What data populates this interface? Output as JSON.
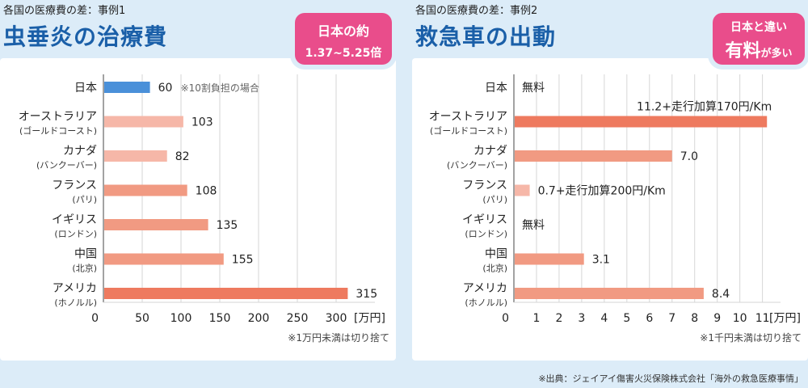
{
  "source": "※出典：ジェイアイ傷害火災保険株式会社「海外の救急医療事情」",
  "colors": {
    "japan": "#4a90d9",
    "bar_light": "#f6b7a8",
    "bar_mid": "#f19a82",
    "bar_dark": "#ee7a5f",
    "badge": "#e94d8b",
    "title": "#1a5fa8"
  },
  "chart_data": [
    {
      "type": "bar",
      "orientation": "horizontal",
      "case_label": "各国の医療費の差：事例1",
      "title": "虫垂炎の治療費",
      "badge": {
        "line1": "日本の約",
        "line2": "1.37~5.25倍"
      },
      "categories": [
        {
          "name": "日本",
          "sub": ""
        },
        {
          "name": "オーストラリア",
          "sub": "(ゴールドコースト)"
        },
        {
          "name": "カナダ",
          "sub": "(バンクーバー)"
        },
        {
          "name": "フランス",
          "sub": "(パリ)"
        },
        {
          "name": "イギリス",
          "sub": "(ロンドン)"
        },
        {
          "name": "中国",
          "sub": "(北京)"
        },
        {
          "name": "アメリカ",
          "sub": "(ホノルル)"
        }
      ],
      "values": [
        60,
        103,
        82,
        108,
        135,
        155,
        315
      ],
      "value_labels": [
        "60",
        "103",
        "82",
        "108",
        "135",
        "155",
        "315"
      ],
      "annotation": "※10割負担の場合",
      "xlim": [
        0,
        350
      ],
      "xticks": [
        "50",
        "100",
        "150",
        "200",
        "250",
        "300"
      ],
      "xticks_values": [
        50,
        100,
        150,
        200,
        250,
        300
      ],
      "origin_label": "0",
      "unit": "[万円]",
      "footnote": "※1万円未満は切り捨て",
      "grid": true
    },
    {
      "type": "bar",
      "orientation": "horizontal",
      "case_label": "各国の医療費の差：事例2",
      "title": "救急車の出動",
      "badge": {
        "line1": "日本と違い",
        "line2a": "有料",
        "line2b": "が多い"
      },
      "categories": [
        {
          "name": "日本",
          "sub": ""
        },
        {
          "name": "オーストラリア",
          "sub": "(ゴールドコースト)"
        },
        {
          "name": "カナダ",
          "sub": "(バンクーバー)"
        },
        {
          "name": "フランス",
          "sub": "(パリ)"
        },
        {
          "name": "イギリス",
          "sub": "(ロンドン)"
        },
        {
          "name": "中国",
          "sub": "(北京)"
        },
        {
          "name": "アメリカ",
          "sub": "(ホノルル)"
        }
      ],
      "values": [
        0,
        11.2,
        7.0,
        0.7,
        0,
        3.1,
        8.4
      ],
      "value_labels": [
        "無料",
        "11.2+走行加算170円/Km",
        "7.0",
        "0.7+走行加算200円/Km",
        "無料",
        "3.1",
        "8.4"
      ],
      "xlim": [
        0,
        11.8
      ],
      "xticks": [
        "1",
        "2",
        "3",
        "4",
        "5",
        "6",
        "7",
        "8",
        "9",
        "10",
        "11"
      ],
      "xticks_values": [
        1,
        2,
        3,
        4,
        5,
        6,
        7,
        8,
        9,
        10,
        11
      ],
      "origin_label": "0",
      "unit": "[万円]",
      "footnote": "※1千円未満は切り捨て",
      "grid": true
    }
  ]
}
